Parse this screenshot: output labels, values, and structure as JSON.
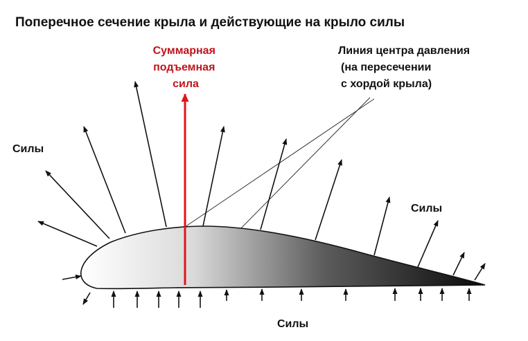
{
  "title": "Поперечное сечение крыла и действующие на крыло силы",
  "lift_label": [
    "Суммарная",
    "подъемная",
    "сила"
  ],
  "pressure_center_label": [
    "Линия центра давления",
    "(на пересечении",
    "с хордой крыла)"
  ],
  "forces_left": "Силы",
  "forces_right": "Силы",
  "forces_bottom": "Силы",
  "colors": {
    "lift": "#e0141b",
    "lift_label": "#c0141b",
    "ink": "#111111",
    "airfoil_light": "#ffffff",
    "airfoil_dark": "#0a0a0a"
  }
}
